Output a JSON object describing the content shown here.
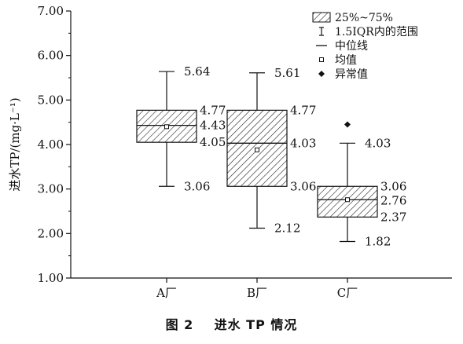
{
  "chart_data": {
    "type": "box",
    "ylabel": "进水TP/(mg·L⁻¹)",
    "ylim": [
      1.0,
      7.0
    ],
    "yticks": [
      "1.00",
      "2.00",
      "3.00",
      "4.00",
      "5.00",
      "6.00",
      "7.00"
    ],
    "categories": [
      "A厂",
      "B厂",
      "C厂"
    ],
    "boxes": [
      {
        "category": "A厂",
        "whisker_high": 5.64,
        "q3": 4.77,
        "median": 4.43,
        "q1": 4.05,
        "whisker_low": 3.06,
        "mean": 4.4,
        "labels": {
          "whisker_high": "5.64",
          "q3": "4.77",
          "median": "4.43",
          "q1": "4.05",
          "whisker_low": "3.06"
        }
      },
      {
        "category": "B厂",
        "whisker_high": 5.61,
        "q3": 4.77,
        "median": 4.03,
        "q1": 3.06,
        "whisker_low": 2.12,
        "mean": 3.88,
        "labels": {
          "whisker_high": "5.61",
          "q3": "4.77",
          "median": "4.03",
          "q1": "3.06",
          "whisker_low": "2.12"
        }
      },
      {
        "category": "C厂",
        "whisker_high": 4.03,
        "q3": 3.06,
        "median": 2.76,
        "q1": 2.37,
        "whisker_low": 1.82,
        "mean": 2.76,
        "outliers": [
          4.45
        ],
        "labels": {
          "whisker_high": "4.03",
          "q3": "3.06",
          "median": "2.76",
          "q1": "2.37",
          "whisker_low": "1.82"
        }
      }
    ],
    "legend": {
      "position": "top-right",
      "entries": [
        "25%~75%",
        "1.5IQR内的范围",
        "中位线",
        "均值",
        "异常值"
      ]
    }
  },
  "caption": {
    "figure": "图 2",
    "title": "进水 TP 情况"
  }
}
